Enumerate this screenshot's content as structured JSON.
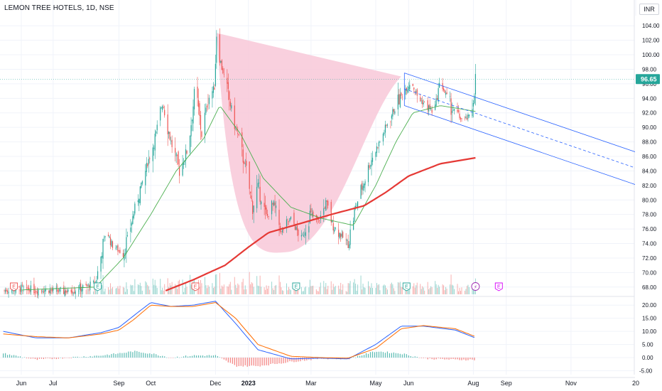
{
  "header": {
    "title": "LEMON TREE HOTELS, 1D, NSE",
    "currency": "INR"
  },
  "chart_data": {
    "type": "candlestick",
    "last_price": 96.65,
    "last_price_label": "96.65",
    "price_axis": {
      "ylim": [
        67,
        105
      ],
      "ticks": [
        "104.00",
        "102.00",
        "100.00",
        "98.00",
        "96.00",
        "94.00",
        "92.00",
        "90.00",
        "88.00",
        "86.00",
        "84.00",
        "82.00",
        "80.00",
        "78.00",
        "76.00",
        "74.00",
        "72.00",
        "70.00",
        "68.00"
      ]
    },
    "macd_axis": {
      "ylim": [
        -6.5,
        22.5
      ],
      "ticks": [
        "20.00",
        "15.00",
        "10.00",
        "5.00",
        "0.00",
        "-5.00"
      ]
    },
    "x_labels": [
      {
        "label": "Jun",
        "date": "2022-06-01"
      },
      {
        "label": "Jul",
        "date": "2022-07-01"
      },
      {
        "label": "Sep",
        "date": "2022-09-01"
      },
      {
        "label": "Oct",
        "date": "2022-10-01"
      },
      {
        "label": "Dec",
        "date": "2022-12-01"
      },
      {
        "label": "2023",
        "date": "2023-01-01"
      },
      {
        "label": "Mar",
        "date": "2023-03-01"
      },
      {
        "label": "May",
        "date": "2023-05-01"
      },
      {
        "label": "Jun",
        "date": "2023-06-01"
      },
      {
        "label": "Aug",
        "date": "2023-08-01"
      },
      {
        "label": "Sep",
        "date": "2023-09-01"
      },
      {
        "label": "Nov",
        "date": "2023-11-01"
      },
      {
        "label": "20",
        "date": "2024-01-01"
      }
    ],
    "price_path": [
      [
        "2022-05-15",
        67.5
      ],
      [
        "2022-06-01",
        67.8
      ],
      [
        "2022-06-20",
        67.6
      ],
      [
        "2022-07-15",
        67.4
      ],
      [
        "2022-08-10",
        68.5
      ],
      [
        "2022-08-20",
        76.0
      ],
      [
        "2022-08-25",
        74.0
      ],
      [
        "2022-09-05",
        72.5
      ],
      [
        "2022-09-20",
        81.0
      ],
      [
        "2022-09-28",
        85.0
      ],
      [
        "2022-10-05",
        88.5
      ],
      [
        "2022-10-12",
        93.5
      ],
      [
        "2022-10-20",
        88.0
      ],
      [
        "2022-10-28",
        84.0
      ],
      [
        "2022-11-05",
        87.0
      ],
      [
        "2022-11-12",
        95.5
      ],
      [
        "2022-11-18",
        89.0
      ],
      [
        "2022-11-24",
        94.0
      ],
      [
        "2022-11-30",
        95.5
      ],
      [
        "2022-12-02",
        103.0
      ],
      [
        "2022-12-06",
        99.0
      ],
      [
        "2022-12-12",
        95.0
      ],
      [
        "2022-12-20",
        90.0
      ],
      [
        "2022-12-30",
        84.0
      ],
      [
        "2023-01-05",
        79.0
      ],
      [
        "2023-01-10",
        82.0
      ],
      [
        "2023-01-18",
        77.5
      ],
      [
        "2023-01-25",
        79.5
      ],
      [
        "2023-02-01",
        75.5
      ],
      [
        "2023-02-10",
        77.5
      ],
      [
        "2023-02-20",
        74.5
      ],
      [
        "2023-02-28",
        78.0
      ],
      [
        "2023-03-08",
        77.0
      ],
      [
        "2023-03-15",
        79.5
      ],
      [
        "2023-03-22",
        76.5
      ],
      [
        "2023-03-30",
        75.0
      ],
      [
        "2023-04-05",
        74.0
      ],
      [
        "2023-04-12",
        79.0
      ],
      [
        "2023-04-20",
        82.5
      ],
      [
        "2023-04-28",
        86.0
      ],
      [
        "2023-05-05",
        88.0
      ],
      [
        "2023-05-12",
        90.5
      ],
      [
        "2023-05-20",
        93.0
      ],
      [
        "2023-05-28",
        95.0
      ],
      [
        "2023-06-03",
        96.5
      ],
      [
        "2023-06-10",
        94.0
      ],
      [
        "2023-06-18",
        93.0
      ],
      [
        "2023-06-25",
        92.0
      ],
      [
        "2023-07-01",
        96.5
      ],
      [
        "2023-07-08",
        93.5
      ],
      [
        "2023-07-15",
        92.0
      ],
      [
        "2023-07-22",
        91.0
      ],
      [
        "2023-07-30",
        91.5
      ],
      [
        "2023-08-03",
        96.65
      ]
    ],
    "ema_20_path": [
      [
        "2022-06-01",
        67.6
      ],
      [
        "2022-08-10",
        68.0
      ],
      [
        "2022-09-05",
        72.0
      ],
      [
        "2022-10-01",
        78.0
      ],
      [
        "2022-10-25",
        84.0
      ],
      [
        "2022-11-20",
        88.5
      ],
      [
        "2022-12-05",
        93.0
      ],
      [
        "2022-12-25",
        89.0
      ],
      [
        "2023-01-15",
        83.0
      ],
      [
        "2023-02-10",
        79.0
      ],
      [
        "2023-03-10",
        77.5
      ],
      [
        "2023-04-10",
        76.5
      ],
      [
        "2023-05-01",
        82.0
      ],
      [
        "2023-05-20",
        88.0
      ],
      [
        "2023-06-05",
        92.0
      ],
      [
        "2023-07-01",
        93.0
      ],
      [
        "2023-08-03",
        92.2
      ]
    ],
    "sma_200_path": [
      [
        "2022-10-15",
        67.5
      ],
      [
        "2022-11-10",
        69.0
      ],
      [
        "2022-12-10",
        71.0
      ],
      [
        "2023-01-01",
        73.5
      ],
      [
        "2023-01-20",
        75.5
      ],
      [
        "2023-02-20",
        76.8
      ],
      [
        "2023-03-20",
        78.0
      ],
      [
        "2023-04-20",
        79.2
      ],
      [
        "2023-05-10",
        81.0
      ],
      [
        "2023-06-01",
        83.3
      ],
      [
        "2023-07-01",
        85.0
      ],
      [
        "2023-08-03",
        85.8
      ]
    ],
    "cup_pattern": {
      "rim_left": [
        "2022-12-02",
        103.0
      ],
      "bottom": [
        "2023-02-05",
        72.8
      ],
      "rim_right": [
        "2023-05-25",
        97.0
      ]
    },
    "channel": {
      "upper": [
        [
          "2023-05-28",
          97.5
        ],
        [
          "2024-01-01",
          86.6
        ]
      ],
      "middle": [
        [
          "2023-05-28",
          95.3
        ],
        [
          "2024-01-01",
          84.4
        ]
      ],
      "lower": [
        [
          "2023-05-28",
          93.0
        ],
        [
          "2024-01-01",
          82.1
        ]
      ]
    },
    "macd_path": [
      [
        "2022-05-15",
        10.0
      ],
      [
        "2022-06-15",
        7.5
      ],
      [
        "2022-07-15",
        7.5
      ],
      [
        "2022-08-15",
        9.5
      ],
      [
        "2022-09-01",
        11.5
      ],
      [
        "2022-09-15",
        16.0
      ],
      [
        "2022-10-01",
        21.0
      ],
      [
        "2022-10-20",
        19.5
      ],
      [
        "2022-11-10",
        20.0
      ],
      [
        "2022-12-01",
        21.5
      ],
      [
        "2022-12-20",
        13.0
      ],
      [
        "2023-01-10",
        3.0
      ],
      [
        "2023-02-10",
        -0.5
      ],
      [
        "2023-03-10",
        -0.2
      ],
      [
        "2023-04-05",
        -0.5
      ],
      [
        "2023-05-01",
        5.0
      ],
      [
        "2023-05-25",
        12.0
      ],
      [
        "2023-06-15",
        12.0
      ],
      [
        "2023-07-15",
        10.5
      ],
      [
        "2023-08-03",
        7.5
      ]
    ],
    "signal_path": [
      [
        "2022-05-15",
        9.0
      ],
      [
        "2022-06-15",
        8.0
      ],
      [
        "2022-07-15",
        7.5
      ],
      [
        "2022-08-15",
        9.0
      ],
      [
        "2022-09-01",
        10.5
      ],
      [
        "2022-09-15",
        14.5
      ],
      [
        "2022-10-01",
        20.0
      ],
      [
        "2022-10-20",
        19.5
      ],
      [
        "2022-11-10",
        19.5
      ],
      [
        "2022-12-01",
        21.0
      ],
      [
        "2022-12-20",
        15.0
      ],
      [
        "2023-01-10",
        5.0
      ],
      [
        "2023-02-10",
        0.5
      ],
      [
        "2023-03-10",
        0.0
      ],
      [
        "2023-04-05",
        -0.2
      ],
      [
        "2023-05-01",
        3.5
      ],
      [
        "2023-05-25",
        11.0
      ],
      [
        "2023-06-15",
        12.2
      ],
      [
        "2023-07-15",
        11.0
      ],
      [
        "2023-08-03",
        8.0
      ]
    ],
    "colors": {
      "up": "#26a69a",
      "down": "#ef5350",
      "ema": "#4caf50",
      "sma": "#e53935",
      "cup_fill": "#f8c8d8",
      "channel": "#2962ff",
      "macd": "#2962ff",
      "signal": "#ff6d00",
      "last_price_bg": "#26a69a",
      "grid": "#f0f3fa"
    },
    "event_markers": [
      {
        "label": "E",
        "date": "2022-05-25",
        "color": "#ef5350"
      },
      {
        "label": "E",
        "date": "2022-08-12",
        "color": "#26a69a"
      },
      {
        "label": "E",
        "date": "2022-11-12",
        "color": "#ef5350"
      },
      {
        "label": "E",
        "date": "2023-02-15",
        "color": "#26a69a"
      },
      {
        "label": "E",
        "date": "2023-05-30",
        "color": "#26a69a"
      },
      {
        "label": "⚡",
        "date": "2023-08-03",
        "color": "#9c27b0"
      },
      {
        "label": "E",
        "date": "2023-08-25",
        "color": "#d500f9"
      }
    ]
  }
}
